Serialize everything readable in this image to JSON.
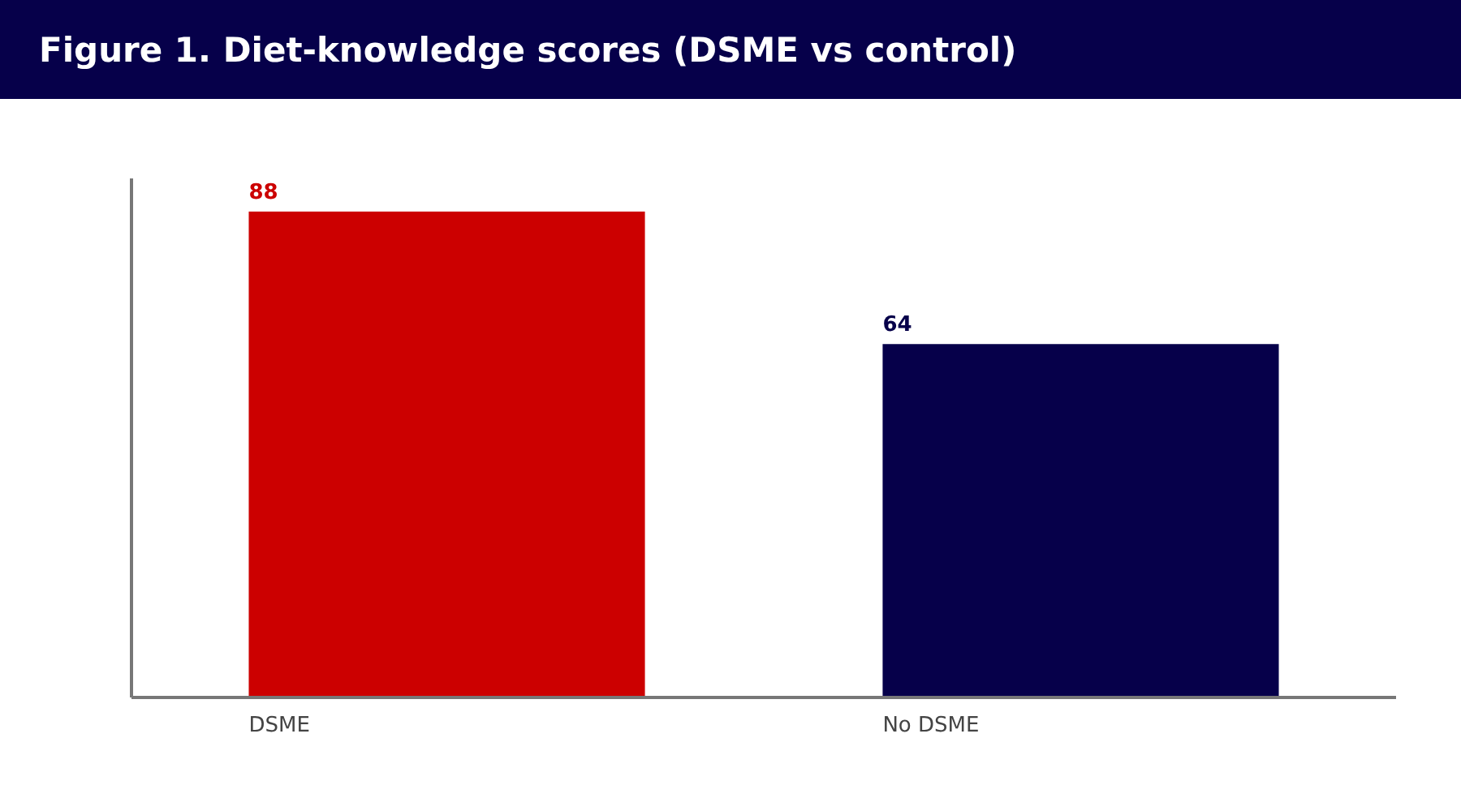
{
  "chart_data": {
    "type": "bar",
    "title": "Figure 1. Diet-knowledge scores (DSME vs control)",
    "categories": [
      "DSME",
      "No DSME"
    ],
    "values": [
      88,
      64
    ],
    "colors": [
      "#cc0000",
      "#06004a"
    ],
    "ylim": [
      0,
      94
    ],
    "data_labels": true,
    "grid": false,
    "tick_labels": "x"
  }
}
